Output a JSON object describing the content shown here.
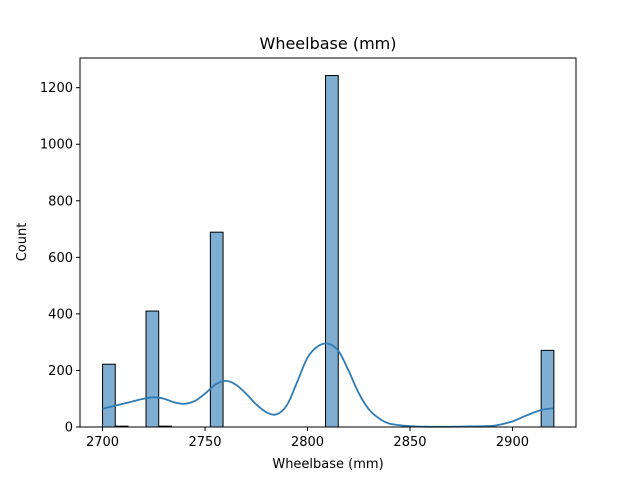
{
  "chart_data": {
    "type": "histogram",
    "title": "Wheelbase (mm)",
    "xlabel": "Wheelbase (mm)",
    "ylabel": "Count",
    "xlim": [
      2689,
      2931
    ],
    "ylim": [
      0,
      1305
    ],
    "xticks": [
      2700,
      2750,
      2800,
      2850,
      2900
    ],
    "yticks": [
      0,
      200,
      400,
      600,
      800,
      1000,
      1200
    ],
    "bin_start": 2700,
    "bin_width": 6.2,
    "bins": [
      {
        "x0": 2700.0,
        "x1": 2706.2,
        "count": 222
      },
      {
        "x0": 2706.2,
        "x1": 2712.4,
        "count": 3
      },
      {
        "x0": 2721.2,
        "x1": 2727.4,
        "count": 410
      },
      {
        "x0": 2727.4,
        "x1": 2733.6,
        "count": 3
      },
      {
        "x0": 2752.6,
        "x1": 2758.8,
        "count": 689
      },
      {
        "x0": 2808.8,
        "x1": 2815.0,
        "count": 1243
      },
      {
        "x0": 2914.0,
        "x1": 2920.2,
        "count": 271
      }
    ],
    "kde": {
      "x": [
        2700,
        2710,
        2720,
        2725,
        2730,
        2735,
        2740,
        2745,
        2750,
        2755,
        2760,
        2765,
        2770,
        2775,
        2780,
        2785,
        2790,
        2795,
        2800,
        2805,
        2810,
        2815,
        2820,
        2825,
        2830,
        2835,
        2840,
        2850,
        2860,
        2870,
        2880,
        2890,
        2895,
        2900,
        2905,
        2910,
        2915,
        2920
      ],
      "y": [
        65,
        82,
        100,
        105,
        100,
        87,
        82,
        92,
        118,
        150,
        163,
        150,
        118,
        80,
        52,
        45,
        78,
        160,
        245,
        285,
        295,
        270,
        200,
        120,
        62,
        30,
        12,
        3,
        1,
        1,
        2,
        4,
        10,
        20,
        35,
        50,
        62,
        66
      ]
    },
    "bar_color": "#7eaed2",
    "bar_edge_color": "#000000",
    "kde_color": "#2f7bb4"
  }
}
